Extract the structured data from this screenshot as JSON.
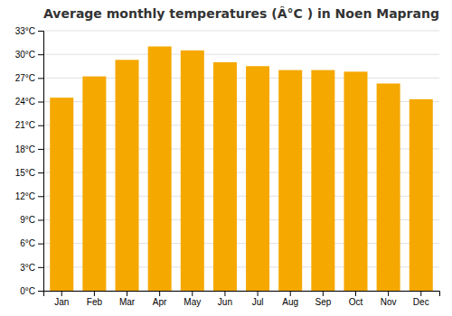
{
  "chart_data": {
    "type": "bar",
    "title": "Average monthly temperatures (Â°C ) in Noen Maprang",
    "categories": [
      "Jan",
      "Feb",
      "Mar",
      "Apr",
      "May",
      "Jun",
      "Jul",
      "Aug",
      "Sep",
      "Oct",
      "Nov",
      "Dec"
    ],
    "values": [
      24.5,
      27.2,
      29.3,
      31.0,
      30.5,
      29.0,
      28.5,
      28.0,
      28.0,
      27.8,
      26.3,
      24.3
    ],
    "color": "#F5A800",
    "ylim": [
      0,
      33
    ],
    "yticks": [
      {
        "value": 0,
        "label": "0°C"
      },
      {
        "value": 3,
        "label": "3°C"
      },
      {
        "value": 6,
        "label": "6°C"
      },
      {
        "value": 9,
        "label": "9°C"
      },
      {
        "value": 12,
        "label": "12°C"
      },
      {
        "value": 15,
        "label": "15°C"
      },
      {
        "value": 18,
        "label": "18°C"
      },
      {
        "value": 21,
        "label": "21°C"
      },
      {
        "value": 24,
        "label": "24°C"
      },
      {
        "value": 27,
        "label": "27°C"
      },
      {
        "value": 30,
        "label": "30°C"
      },
      {
        "value": 33,
        "label": "33°C"
      }
    ],
    "grid": true
  }
}
